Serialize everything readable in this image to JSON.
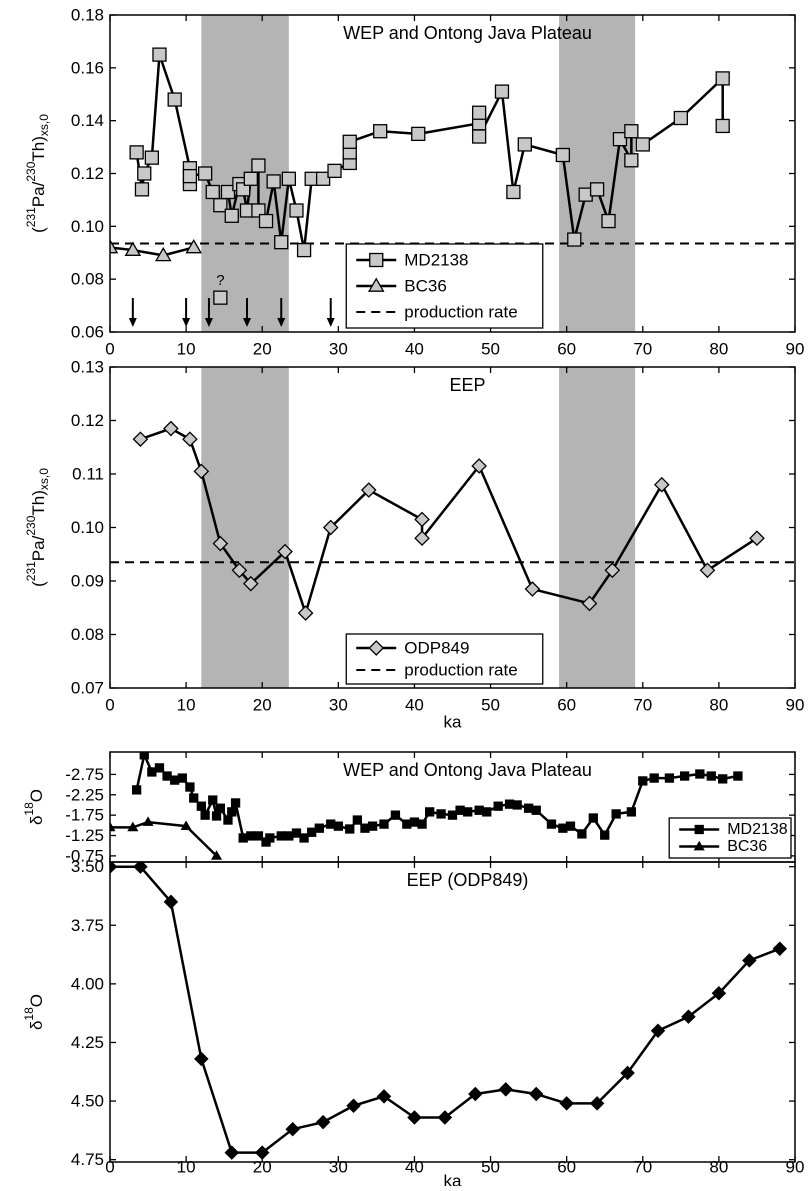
{
  "chart_data": [
    {
      "type": "line",
      "title": "WEP and Ontong Java Plateau",
      "y_label": [
        "(",
        "231",
        "Pa/",
        "230",
        "Th)",
        "xs,0"
      ],
      "xlim": [
        0,
        90
      ],
      "xticks": [
        0,
        10,
        20,
        30,
        40,
        50,
        60,
        70,
        80,
        90
      ],
      "show_xtick_labels": true,
      "ylim": [
        0.06,
        0.18
      ],
      "yticks": [
        0.06,
        0.08,
        {
          "value": 0.1,
          "label": "0.10"
        },
        0.12,
        0.14,
        0.16,
        0.18
      ],
      "shaded_bands": [
        [
          12,
          23.5
        ],
        [
          59,
          69
        ]
      ],
      "series": [
        {
          "name": "MD2138",
          "marker": "square",
          "color": "#c8c8c8",
          "x": [
            3.5,
            4.2,
            4.5,
            5.5,
            6.5,
            8.5,
            10.5,
            10.5,
            10.5,
            12.5,
            13.5,
            14.5,
            15.5,
            16,
            17,
            17.5,
            18,
            18.5,
            19.5,
            19.5,
            20.5,
            21.5,
            22.5,
            23.5,
            24.5,
            25.5,
            26.5,
            28,
            29.5,
            31.5,
            31.5,
            31.5,
            35.5,
            40.5,
            48.5,
            48.5,
            48.5,
            51.5,
            53,
            54.5,
            59.5,
            61,
            62.5,
            64,
            65.5,
            67,
            68.5,
            68.5,
            70,
            75,
            80.5,
            80.5
          ],
          "values": [
            0.128,
            0.114,
            0.12,
            0.126,
            0.165,
            0.148,
            0.122,
            0.116,
            0.119,
            0.12,
            0.113,
            0.108,
            0.113,
            0.104,
            0.116,
            0.114,
            0.106,
            0.118,
            0.123,
            0.106,
            0.102,
            0.117,
            0.094,
            0.118,
            0.106,
            0.091,
            0.118,
            0.118,
            0.121,
            0.124,
            0.128,
            0.132,
            0.136,
            0.135,
            0.139,
            0.143,
            0.134,
            0.151,
            0.113,
            0.131,
            0.127,
            0.095,
            0.112,
            0.114,
            0.102,
            0.133,
            0.125,
            0.136,
            0.131,
            0.141,
            0.156,
            0.138
          ]
        },
        {
          "name": "BC36",
          "marker": "triangle",
          "color": "#c8c8c8",
          "x": [
            0,
            3,
            7,
            11
          ],
          "values": [
            0.092,
            0.091,
            0.089,
            0.092
          ]
        }
      ],
      "reference_line": {
        "name": "production rate",
        "value": 0.0935
      },
      "arrows": [
        3,
        10,
        13,
        18,
        22.5,
        29
      ],
      "outlier": {
        "x": 14.5,
        "y": 0.073,
        "label": "?",
        "color": "#c8c8c8"
      },
      "legend": "bottom-center"
    },
    {
      "type": "line",
      "title": "EEP",
      "y_label": [
        "(",
        "231",
        "Pa/",
        "230",
        "Th)",
        "xs,0"
      ],
      "x_label": "ka",
      "xlim": [
        0,
        90
      ],
      "xticks": [
        0,
        10,
        20,
        30,
        40,
        50,
        60,
        70,
        80,
        90
      ],
      "show_xtick_labels": true,
      "ylim": [
        0.07,
        0.13
      ],
      "yticks": [
        0.07,
        0.08,
        0.09,
        {
          "value": 0.1,
          "label": "0.10"
        },
        0.11,
        0.12,
        0.13
      ],
      "shaded_bands": [
        [
          12,
          23.5
        ],
        [
          59,
          69
        ]
      ],
      "series": [
        {
          "name": "ODP849",
          "marker": "diamond",
          "color": "#c8c8c8",
          "x": [
            4,
            8,
            10.5,
            12,
            14.5,
            17,
            18.5,
            23,
            25.7,
            29,
            34,
            41,
            41,
            48.5,
            55.5,
            63,
            66,
            72.5,
            78.5,
            85
          ],
          "values": [
            0.1165,
            0.1185,
            0.1165,
            0.1105,
            0.097,
            0.092,
            0.0895,
            0.0955,
            0.084,
            0.1,
            0.107,
            0.1015,
            0.098,
            0.1115,
            0.0885,
            0.0858,
            0.092,
            0.108,
            0.092,
            0.098
          ]
        }
      ],
      "reference_line": {
        "name": "production rate",
        "value": 0.0935
      },
      "legend": "bottom-center"
    },
    {
      "type": "line",
      "title": "WEP and Ontong Java Plateau",
      "y_label": [
        "δ",
        "18",
        "O"
      ],
      "xlim": [
        0,
        90
      ],
      "xticks": [
        0,
        10,
        20,
        30,
        40,
        50,
        60,
        70,
        80,
        90
      ],
      "show_xtick_labels": false,
      "ylim": [
        -0.6,
        -3.3
      ],
      "yticks": [
        -2.75,
        -2.25,
        -1.75,
        -1.25,
        -0.75
      ],
      "series": [
        {
          "name": "MD2138",
          "marker": "square",
          "color": "#000000",
          "x": [
            3.5,
            4.5,
            5.5,
            6.5,
            7.5,
            8.5,
            9.5,
            10.5,
            11,
            12,
            12.5,
            13.5,
            14,
            14.5,
            15.5,
            16,
            16.5,
            17.5,
            18.5,
            19.5,
            20.5,
            21,
            22.5,
            23.5,
            24.5,
            25.5,
            26.5,
            27.5,
            29,
            30,
            31.5,
            32.5,
            33.5,
            34.5,
            36,
            37.5,
            39,
            40,
            41,
            42,
            43.5,
            45,
            46,
            47,
            48.5,
            49.5,
            51,
            52.5,
            53.5,
            55,
            56,
            58,
            59.5,
            60.5,
            62,
            63.5,
            65,
            66.5,
            68.5,
            70,
            71.5,
            73.5,
            75.5,
            77.5,
            79,
            80.5,
            82.5
          ],
          "values": [
            -2.37,
            -3.23,
            -2.81,
            -2.91,
            -2.71,
            -2.61,
            -2.66,
            -2.44,
            -2.17,
            -1.97,
            -1.75,
            -2.12,
            -1.73,
            -1.92,
            -1.63,
            -1.83,
            -2.05,
            -1.19,
            -1.24,
            -1.24,
            -1.09,
            -1.19,
            -1.24,
            -1.24,
            -1.31,
            -1.19,
            -1.33,
            -1.43,
            -1.53,
            -1.48,
            -1.41,
            -1.63,
            -1.43,
            -1.48,
            -1.53,
            -1.75,
            -1.53,
            -1.58,
            -1.53,
            -1.83,
            -1.78,
            -1.75,
            -1.87,
            -1.83,
            -1.87,
            -1.83,
            -1.97,
            -2.02,
            -2,
            -1.92,
            -1.87,
            -1.53,
            -1.43,
            -1.48,
            -1.29,
            -1.68,
            -1.26,
            -1.78,
            -1.83,
            -2.59,
            -2.66,
            -2.66,
            -2.71,
            -2.76,
            -2.71,
            -2.64,
            -2.71
          ]
        },
        {
          "name": "BC36",
          "marker": "triangle",
          "color": "#000000",
          "x": [
            0,
            3,
            5,
            10,
            14
          ],
          "values": [
            -1.45,
            -1.45,
            -1.58,
            -1.48,
            -0.75
          ]
        }
      ],
      "legend": "bottom-right"
    },
    {
      "type": "line",
      "title": "EEP (ODP849)",
      "y_label": [
        "δ",
        "18",
        "O"
      ],
      "x_label": "ka",
      "xlim": [
        0,
        90
      ],
      "xticks": [
        0,
        10,
        20,
        30,
        40,
        50,
        60,
        70,
        80,
        90
      ],
      "show_xtick_labels": true,
      "ylim": [
        4.76,
        3.48
      ],
      "yticks": [
        {
          "value": 3.5,
          "label": "3.50"
        },
        3.75,
        {
          "value": 4,
          "label": "4.00"
        },
        4.25,
        {
          "value": 4.5,
          "label": "4.50"
        },
        4.75
      ],
      "series": [
        {
          "marker": "diamond",
          "color": "#000000",
          "x": [
            0,
            4,
            8,
            12,
            16,
            20,
            24,
            28,
            32,
            36,
            40,
            44,
            48,
            52,
            56,
            60,
            64,
            68,
            72,
            76,
            80,
            84,
            88
          ],
          "values": [
            3.5,
            3.5,
            3.65,
            4.32,
            4.72,
            4.72,
            4.62,
            4.59,
            4.52,
            4.48,
            4.57,
            4.57,
            4.47,
            4.45,
            4.47,
            4.51,
            4.51,
            4.38,
            4.2,
            4.14,
            4.04,
            3.9,
            3.85
          ]
        }
      ]
    }
  ]
}
